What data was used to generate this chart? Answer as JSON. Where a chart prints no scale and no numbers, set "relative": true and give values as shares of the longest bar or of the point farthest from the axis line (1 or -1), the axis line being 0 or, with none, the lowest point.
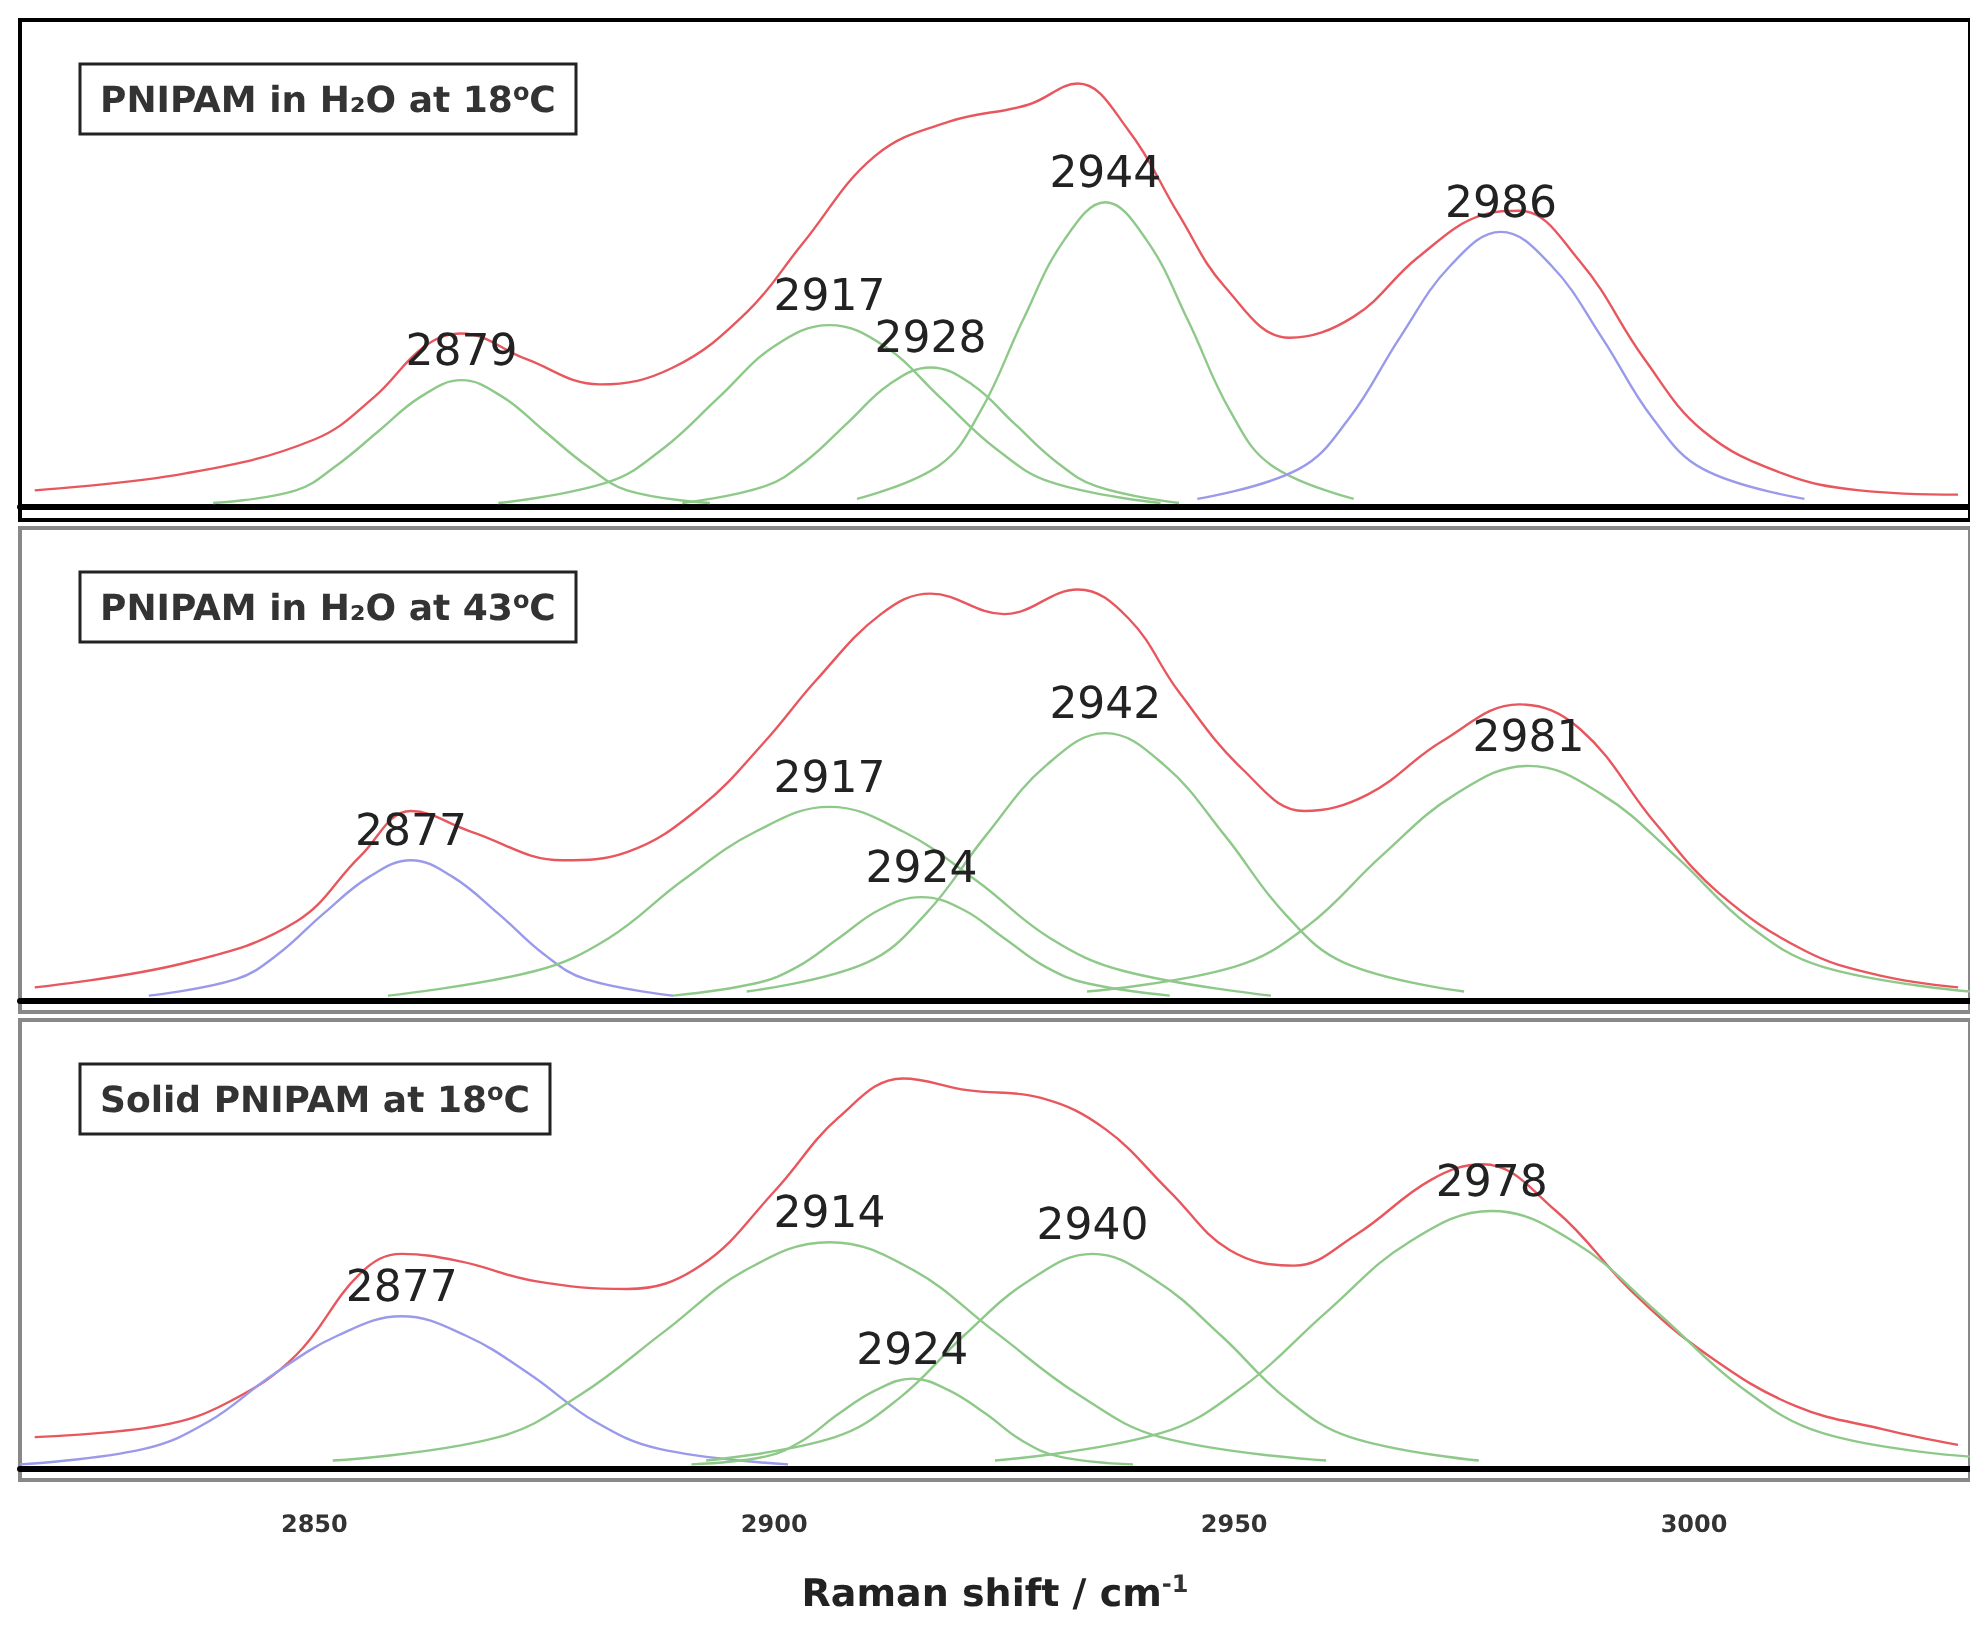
{
  "chart_data": [
    {
      "type": "line",
      "title": "PNIPAM in H₂O at 18$^{o}$C",
      "relative": true,
      "xlim": [
        2818,
        3030
      ],
      "xticks": [
        2850,
        2900,
        2950,
        3000
      ],
      "tick_labels": false,
      "series": [
        {
          "color": "#e8575e",
          "x": [
            2819.6,
            2836,
            2850,
            2856.5,
            2862,
            2866,
            2873,
            2881,
            2889,
            2897,
            2903,
            2911,
            2919,
            2927.6,
            2933,
            2938.5,
            2944,
            2949,
            2956,
            2963,
            2970,
            2977,
            2981,
            2987.6,
            2994.6,
            3001,
            3009.6,
            3018,
            3028.7
          ],
          "values": [
            0.04,
            0.08,
            0.16,
            0.26,
            0.38,
            0.41,
            0.35,
            0.29,
            0.33,
            0.46,
            0.62,
            0.83,
            0.91,
            0.95,
            1.0,
            0.89,
            0.69,
            0.52,
            0.4,
            0.45,
            0.59,
            0.69,
            0.7,
            0.58,
            0.35,
            0.18,
            0.08,
            0.04,
            0.03
          ]
        },
        {
          "color": "#8fc98a",
          "x": [
            2839,
            2848,
            2852.5,
            2857,
            2861.5,
            2866,
            2870.5,
            2875,
            2879.5,
            2884,
            2893
          ],
          "values": [
            0.01,
            0.04,
            0.1,
            0.18,
            0.26,
            0.3,
            0.26,
            0.18,
            0.1,
            0.04,
            0.01
          ]
        },
        {
          "color": "#8fc98a",
          "x": [
            2870,
            2882,
            2888,
            2894,
            2900,
            2906,
            2912,
            2918,
            2924,
            2930,
            2942
          ],
          "values": [
            0.01,
            0.06,
            0.14,
            0.26,
            0.38,
            0.43,
            0.38,
            0.26,
            0.14,
            0.06,
            0.01
          ]
        },
        {
          "color": "#8fc98a",
          "x": [
            2890,
            2899,
            2903.5,
            2908,
            2912.5,
            2917,
            2921.5,
            2926,
            2930.5,
            2935,
            2944
          ],
          "values": [
            0.01,
            0.05,
            0.11,
            0.2,
            0.29,
            0.33,
            0.29,
            0.2,
            0.11,
            0.05,
            0.01
          ]
        },
        {
          "color": "#8fc98a",
          "x": [
            2909,
            2918,
            2922.5,
            2927,
            2931.5,
            2936,
            2940.5,
            2945,
            2949.5,
            2954,
            2963
          ],
          "values": [
            0.02,
            0.1,
            0.23,
            0.44,
            0.63,
            0.72,
            0.63,
            0.44,
            0.23,
            0.1,
            0.02
          ]
        },
        {
          "color": "#9a9aeb",
          "x": [
            2946,
            2957,
            2962.5,
            2968,
            2973.5,
            2979,
            2984.5,
            2990,
            2995.5,
            3001,
            3012
          ],
          "values": [
            0.02,
            0.09,
            0.21,
            0.4,
            0.57,
            0.65,
            0.57,
            0.4,
            0.21,
            0.09,
            0.02
          ]
        }
      ],
      "annotations": [
        {
          "text": "2879",
          "x": 2866,
          "y": 0.3
        },
        {
          "text": "2917",
          "x": 2906,
          "y": 0.43
        },
        {
          "text": "2928",
          "x": 2917,
          "y": 0.33
        },
        {
          "text": "2944",
          "x": 2936,
          "y": 0.72
        },
        {
          "text": "2986",
          "x": 2979,
          "y": 0.65
        }
      ]
    },
    {
      "type": "line",
      "title": "PNIPAM in H₂O at 43$^{o}$C",
      "relative": true,
      "xlim": [
        2818,
        3030
      ],
      "xticks": [
        2850,
        2900,
        2950,
        3000
      ],
      "tick_labels": false,
      "series": [
        {
          "color": "#e8575e",
          "x": [
            2819.6,
            2836,
            2848,
            2855,
            2860.5,
            2867,
            2877,
            2884,
            2892,
            2899,
            2904.6,
            2911.6,
            2917,
            2925,
            2933,
            2938.5,
            2944,
            2951,
            2957.6,
            2964.5,
            2972.6,
            2981,
            2987.6,
            2995.8,
            3002.7,
            3012,
            3020,
            3028.7
          ],
          "values": [
            0.03,
            0.09,
            0.19,
            0.35,
            0.46,
            0.41,
            0.34,
            0.36,
            0.47,
            0.63,
            0.78,
            0.94,
            0.99,
            0.94,
            1.0,
            0.93,
            0.75,
            0.56,
            0.46,
            0.5,
            0.63,
            0.72,
            0.66,
            0.43,
            0.26,
            0.12,
            0.06,
            0.03
          ]
        },
        {
          "color": "#9a9aeb",
          "x": [
            2832,
            2841.5,
            2846,
            2851,
            2856,
            2860.5,
            2865,
            2870,
            2875,
            2879.5,
            2889
          ],
          "values": [
            0.01,
            0.05,
            0.11,
            0.21,
            0.3,
            0.34,
            0.3,
            0.21,
            0.11,
            0.05,
            0.01
          ]
        },
        {
          "color": "#8fc98a",
          "x": [
            2858,
            2874,
            2882,
            2890,
            2898,
            2906,
            2914,
            2922,
            2930,
            2938,
            2954
          ],
          "values": [
            0.01,
            0.07,
            0.15,
            0.29,
            0.41,
            0.47,
            0.41,
            0.29,
            0.15,
            0.07,
            0.01
          ]
        },
        {
          "color": "#8fc98a",
          "x": [
            2889,
            2898,
            2902.5,
            2907,
            2911.5,
            2916,
            2920.5,
            2925,
            2929.5,
            2934,
            2943
          ],
          "values": [
            0.01,
            0.04,
            0.08,
            0.15,
            0.22,
            0.25,
            0.22,
            0.15,
            0.08,
            0.04,
            0.01
          ]
        },
        {
          "color": "#8fc98a",
          "x": [
            2897,
            2910,
            2916.5,
            2923,
            2929.5,
            2936,
            2942.5,
            2949,
            2955.5,
            2962,
            2975
          ],
          "values": [
            0.02,
            0.09,
            0.21,
            0.4,
            0.57,
            0.65,
            0.57,
            0.4,
            0.21,
            0.09,
            0.02
          ]
        },
        {
          "color": "#8fc98a",
          "x": [
            2934,
            2950,
            2958,
            2966,
            2974,
            2982,
            2990,
            2998,
            3006,
            3014,
            3030
          ],
          "values": [
            0.02,
            0.08,
            0.18,
            0.35,
            0.5,
            0.57,
            0.5,
            0.35,
            0.18,
            0.08,
            0.02
          ]
        }
      ],
      "annotations": [
        {
          "text": "2877",
          "x": 2860.5,
          "y": 0.34
        },
        {
          "text": "2917",
          "x": 2906,
          "y": 0.47
        },
        {
          "text": "2924",
          "x": 2916,
          "y": 0.25
        },
        {
          "text": "2942",
          "x": 2936,
          "y": 0.65
        },
        {
          "text": "2981",
          "x": 2982,
          "y": 0.57
        }
      ]
    },
    {
      "type": "line",
      "title": "Solid PNIPAM at 18$^{o}$C",
      "xlabel": "Raman shift / cm$^{-1}$",
      "relative": true,
      "xlim": [
        2818,
        3030
      ],
      "xticks": [
        2850,
        2900,
        2950,
        3000
      ],
      "tick_labels": "x",
      "series": [
        {
          "color": "#e8575e",
          "x": [
            2819.6,
            2833.4,
            2840.7,
            2848,
            2855,
            2859.5,
            2866,
            2874,
            2884,
            2892,
            2900,
            2907,
            2914,
            2921,
            2929,
            2936,
            2943,
            2949.5,
            2956.5,
            2963.3,
            2971.4,
            2977,
            2985,
            2993.4,
            3001.5,
            3011,
            3020.6,
            3028.7
          ],
          "values": [
            0.08,
            0.11,
            0.17,
            0.29,
            0.5,
            0.55,
            0.53,
            0.48,
            0.46,
            0.52,
            0.71,
            0.9,
            1.0,
            0.97,
            0.95,
            0.87,
            0.71,
            0.56,
            0.52,
            0.6,
            0.74,
            0.78,
            0.66,
            0.45,
            0.29,
            0.16,
            0.1,
            0.06
          ]
        },
        {
          "color": "#9a9aeb",
          "x": [
            2818,
            2831.5,
            2838.5,
            2845.5,
            2852.5,
            2859.5,
            2866.5,
            2873.5,
            2880.5,
            2887.5,
            2901.5
          ],
          "values": [
            0.01,
            0.05,
            0.12,
            0.24,
            0.34,
            0.39,
            0.34,
            0.24,
            0.12,
            0.05,
            0.01
          ]
        },
        {
          "color": "#8fc98a",
          "x": [
            2852,
            2870,
            2879,
            2888,
            2897,
            2906,
            2915,
            2924,
            2933,
            2942,
            2960
          ],
          "values": [
            0.02,
            0.08,
            0.19,
            0.35,
            0.51,
            0.58,
            0.51,
            0.35,
            0.19,
            0.08,
            0.02
          ]
        },
        {
          "color": "#8fc98a",
          "x": [
            2891,
            2899,
            2903,
            2907,
            2911,
            2915,
            2919,
            2923,
            2927,
            2931,
            2939
          ],
          "values": [
            0.01,
            0.03,
            0.07,
            0.14,
            0.2,
            0.23,
            0.2,
            0.14,
            0.07,
            0.03,
            0.01
          ]
        },
        {
          "color": "#8fc98a",
          "x": [
            2892.6,
            2906.6,
            2913.6,
            2920.6,
            2927.6,
            2934.6,
            2941.6,
            2948.6,
            2955.6,
            2962.6,
            2976.6
          ],
          "values": [
            0.02,
            0.08,
            0.18,
            0.34,
            0.48,
            0.55,
            0.48,
            0.34,
            0.18,
            0.08,
            0.02
          ]
        },
        {
          "color": "#8fc98a",
          "x": [
            2924,
            2942,
            2951,
            2960,
            2969,
            2978,
            2987,
            2996,
            3005,
            3014,
            3030
          ],
          "values": [
            0.02,
            0.09,
            0.21,
            0.4,
            0.58,
            0.66,
            0.58,
            0.4,
            0.21,
            0.09,
            0.03
          ]
        }
      ],
      "annotations": [
        {
          "text": "2877",
          "x": 2859.5,
          "y": 0.39
        },
        {
          "text": "2914",
          "x": 2906,
          "y": 0.58
        },
        {
          "text": "2924",
          "x": 2915,
          "y": 0.23
        },
        {
          "text": "2940",
          "x": 2934.6,
          "y": 0.55
        },
        {
          "text": "2978",
          "x": 2978,
          "y": 0.66
        }
      ]
    }
  ]
}
